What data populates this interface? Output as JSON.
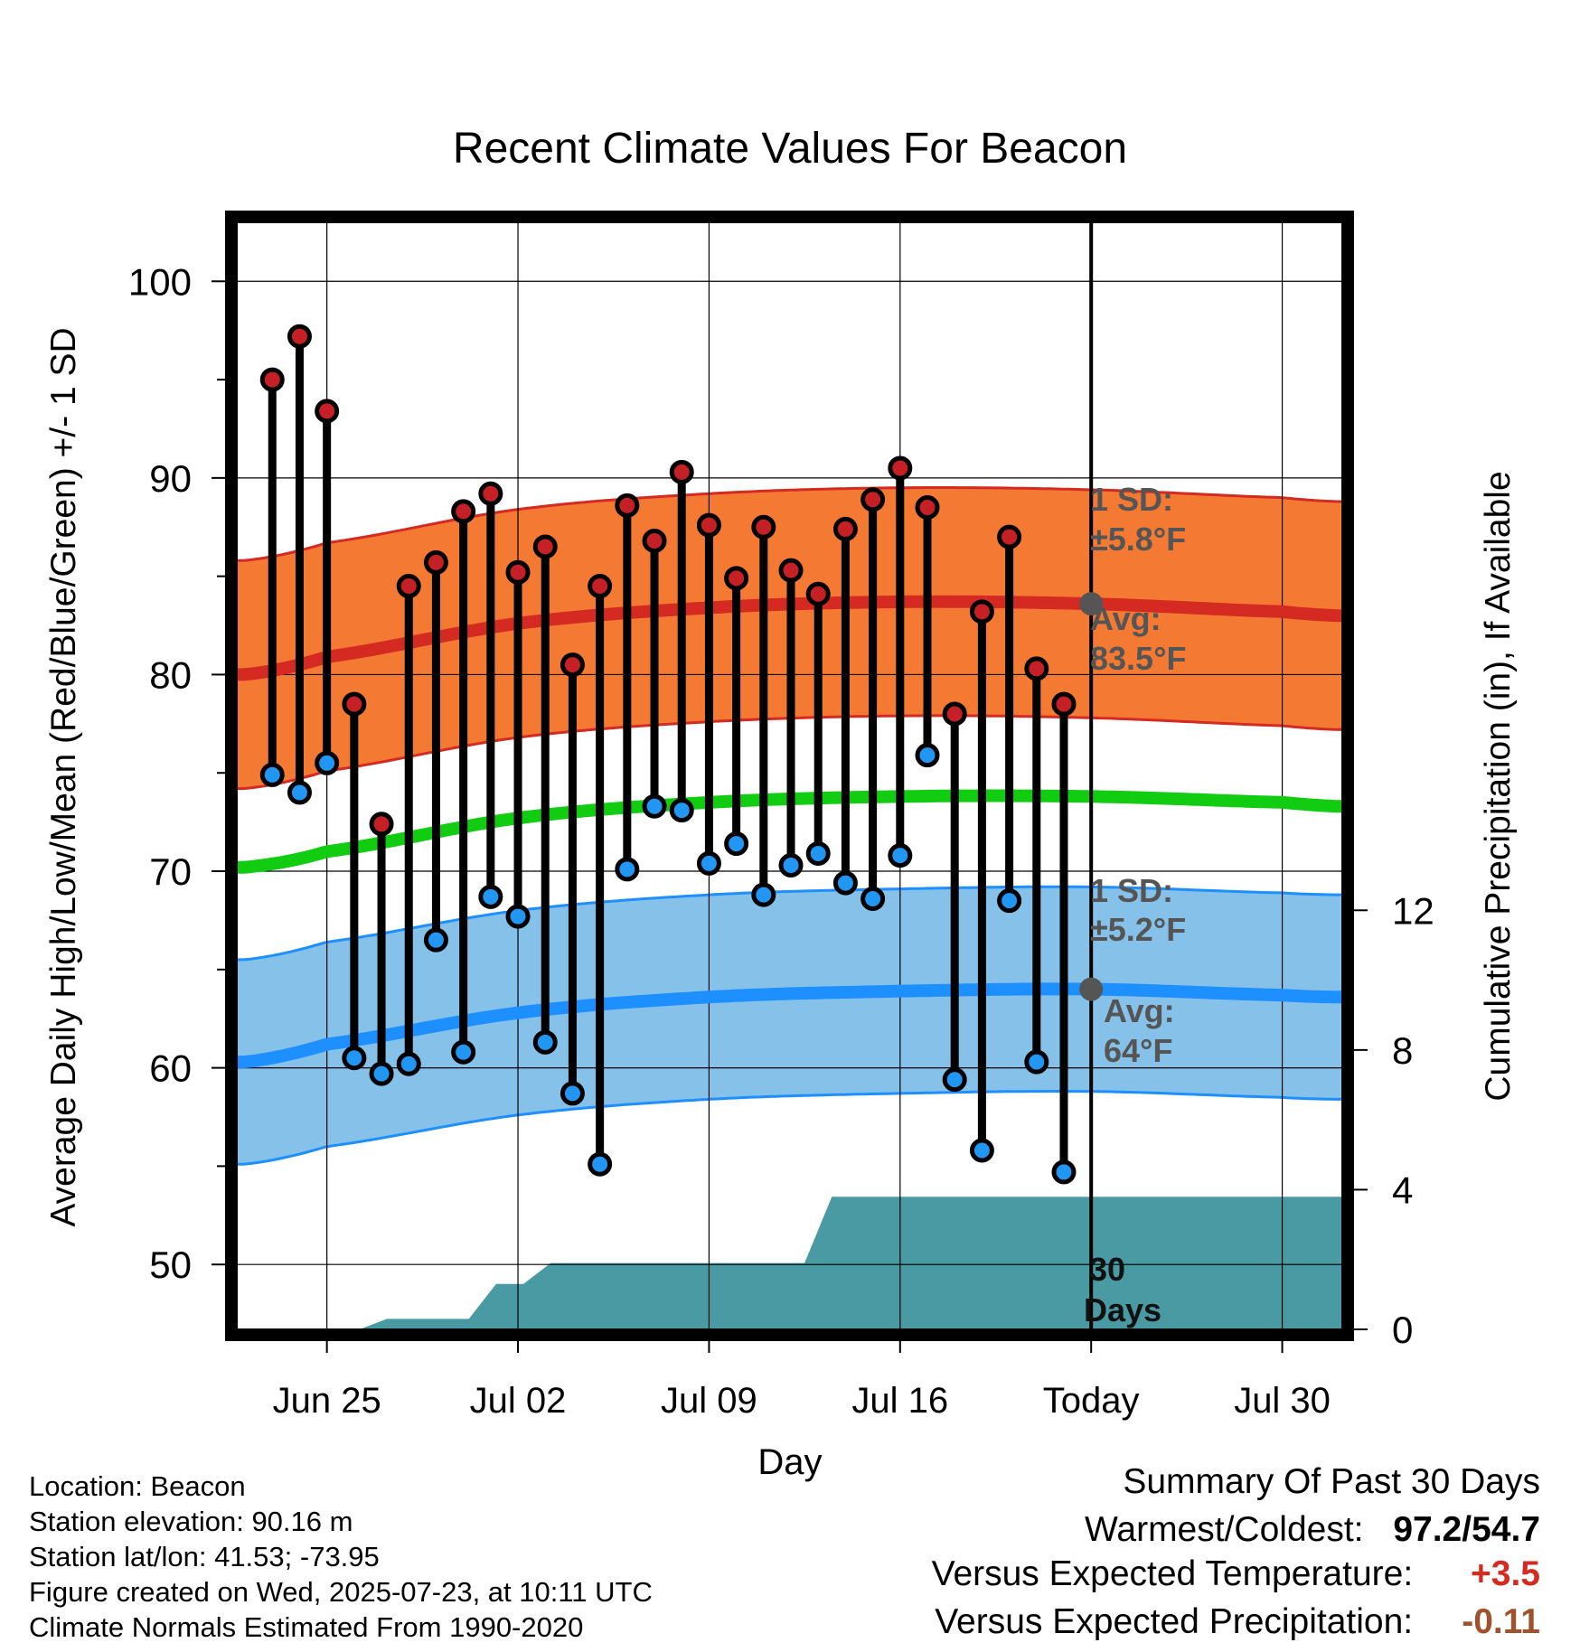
{
  "chart_data": {
    "type": "line",
    "title": "Recent Climate Values For Beacon",
    "xlabel": "Day",
    "ylabel_left": "Average Daily High/Low/Mean (Red/Blue/Green) +/- 1 SD",
    "ylabel_right": "Cumulative Precipitation (in), If Available",
    "xlim": [
      -3.3,
      37.2
    ],
    "ylim": [
      46.7,
      103
    ],
    "precip_ylim": [
      0,
      31.7
    ],
    "x_ticks": [
      {
        "x": 0,
        "label": "Jun 25"
      },
      {
        "x": 7,
        "label": "Jul 02"
      },
      {
        "x": 14,
        "label": "Jul 09"
      },
      {
        "x": 21,
        "label": "Jul 16"
      },
      {
        "x": 28,
        "label": "Today"
      },
      {
        "x": 35,
        "label": "Jul 30"
      }
    ],
    "y_ticks": [
      {
        "v": 50,
        "label": "50"
      },
      {
        "v": 60,
        "label": "60"
      },
      {
        "v": 70,
        "label": "70"
      },
      {
        "v": 80,
        "label": "80"
      },
      {
        "v": 90,
        "label": "90"
      },
      {
        "v": 100,
        "label": "100"
      }
    ],
    "y_minor_ticks": [
      55,
      65,
      75,
      85,
      95
    ],
    "precip_ticks": [
      {
        "v": 0,
        "label": "0"
      },
      {
        "v": 4,
        "label": "4"
      },
      {
        "v": 8,
        "label": "8"
      },
      {
        "v": 12,
        "label": "12"
      }
    ],
    "days": [
      -2,
      -1,
      0,
      1,
      2,
      3,
      4,
      5,
      6,
      7,
      8,
      9,
      10,
      11,
      12,
      13,
      14,
      15,
      16,
      17,
      18,
      19,
      20,
      21,
      22,
      23,
      24,
      25,
      26,
      27
    ],
    "highs": [
      95.0,
      97.2,
      93.4,
      78.5,
      72.4,
      84.5,
      85.7,
      88.3,
      89.2,
      85.2,
      86.5,
      80.5,
      84.5,
      88.6,
      86.8,
      90.3,
      87.6,
      84.9,
      87.5,
      85.3,
      84.1,
      87.4,
      88.9,
      90.5,
      88.5,
      78.0,
      83.2,
      87.0,
      80.3,
      78.5
    ],
    "lows": [
      74.9,
      74.0,
      75.5,
      60.5,
      59.7,
      60.2,
      66.5,
      60.8,
      68.7,
      67.7,
      61.3,
      58.7,
      55.1,
      70.1,
      73.3,
      73.1,
      70.4,
      71.4,
      68.8,
      70.3,
      70.9,
      69.4,
      68.6,
      70.8,
      75.9,
      59.4,
      55.8,
      68.5,
      60.3,
      54.7
    ],
    "normals": {
      "days": [
        -3,
        0,
        7,
        14,
        21,
        28,
        35,
        37
      ],
      "high_avg": [
        80.0,
        80.9,
        82.6,
        83.4,
        83.7,
        83.6,
        83.2,
        83.0
      ],
      "low_avg": [
        60.3,
        61.2,
        62.8,
        63.6,
        63.9,
        64.0,
        63.7,
        63.6
      ],
      "mean_avg": [
        70.2,
        71.0,
        72.7,
        73.5,
        73.8,
        73.8,
        73.5,
        73.3
      ],
      "high_sd": 5.8,
      "low_sd": 5.2
    },
    "precip": {
      "x": [
        -3.3,
        1.2,
        2.2,
        5.2,
        6.2,
        7.2,
        8.2,
        17.5,
        18.5,
        37.2
      ],
      "y": [
        0,
        0,
        0.3,
        0.3,
        1.3,
        1.3,
        1.9,
        1.9,
        3.8,
        3.8
      ]
    },
    "today_x": 28,
    "annotations": {
      "high_sd_line1": "1 SD:",
      "high_sd_line2": "±5.8°F",
      "high_avg_line1": "Avg:",
      "high_avg_line2": "83.5°F",
      "low_sd_line1": "1 SD:",
      "low_sd_line2": "±5.2°F",
      "low_avg_line1": "Avg:",
      "low_avg_line2": "64°F",
      "days_line1": "30",
      "days_line2": "Days"
    }
  },
  "info": {
    "location": "Location: Beacon",
    "elevation": "Station elevation: 90.16 m",
    "latlon": "Station lat/lon: 41.53; -73.95",
    "created": "Figure created on Wed, 2025-07-23, at 10:11 UTC",
    "normals": "Climate Normals Estimated From 1990-2020"
  },
  "summary": {
    "title": "Summary Of Past 30 Days",
    "warm_cold_label": "Warmest/Coldest:",
    "warm_cold_value": "97.2/54.7",
    "temp_label": "Versus Expected Temperature:",
    "temp_value": "+3.5",
    "precip_label": "Versus Expected Precipitation:",
    "precip_value": "-0.11"
  },
  "colors": {
    "high_band": "#f47a33",
    "high_line": "#d42a22",
    "low_band": "#85c1e9",
    "low_line": "#1e8fff",
    "mean_line": "#11cc11",
    "precip_fill": "#4a9aa3",
    "high_marker": "#c42026",
    "low_marker": "#2196f3",
    "annotation": "#555555",
    "temp_value": "#d42a22",
    "precip_value": "#a0522d"
  }
}
